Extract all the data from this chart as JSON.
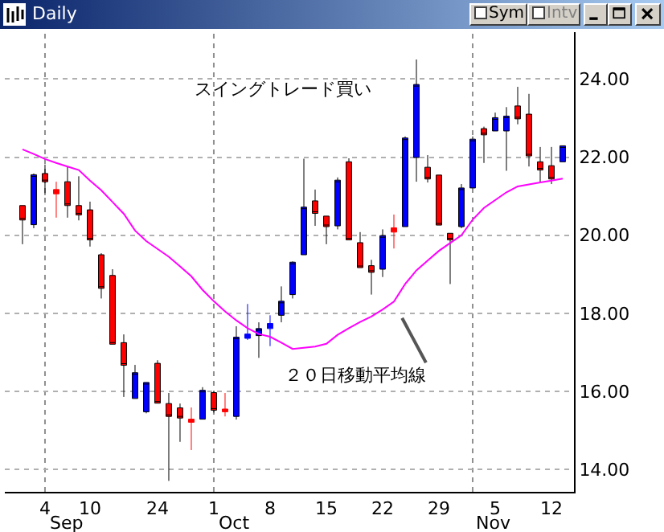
{
  "chart_data": {
    "type": "candlestick",
    "title": "Daily",
    "categories": [
      null,
      null,
      "4",
      null,
      null,
      null,
      "10",
      null,
      null,
      null,
      null,
      null,
      "24",
      null,
      null,
      null,
      null,
      "1",
      null,
      null,
      null,
      null,
      "8",
      null,
      null,
      null,
      null,
      "15",
      null,
      null,
      null,
      null,
      "22",
      null,
      null,
      null,
      null,
      "29",
      null,
      null,
      null,
      null,
      "5",
      null,
      null,
      null,
      null,
      "12",
      null
    ],
    "ohlc": [
      [
        20.76,
        20.76,
        19.77,
        20.39
      ],
      [
        20.27,
        21.58,
        20.18,
        21.55
      ],
      [
        21.58,
        21.81,
        21.03,
        21.37
      ],
      [
        21.17,
        21.37,
        20.45,
        21.06
      ],
      [
        21.37,
        21.76,
        20.45,
        20.76
      ],
      [
        20.76,
        21.51,
        20.38,
        20.52
      ],
      [
        20.65,
        20.86,
        19.71,
        19.88
      ],
      [
        19.5,
        19.54,
        18.38,
        18.64
      ],
      [
        18.97,
        19.13,
        17.21,
        17.21
      ],
      [
        17.25,
        17.46,
        15.86,
        16.67
      ],
      [
        15.82,
        16.68,
        15.82,
        16.48
      ],
      [
        15.48,
        16.23,
        15.44,
        16.23
      ],
      [
        16.72,
        16.8,
        15.7,
        15.7
      ],
      [
        15.69,
        15.96,
        13.71,
        15.36
      ],
      [
        15.58,
        15.69,
        14.71,
        15.32
      ],
      [
        15.29,
        15.59,
        14.5,
        15.21
      ],
      [
        15.29,
        16.11,
        15.29,
        16.03
      ],
      [
        15.97,
        16.0,
        15.46,
        15.52
      ],
      [
        15.55,
        15.96,
        15.36,
        15.48
      ],
      [
        15.36,
        17.67,
        15.28,
        17.39
      ],
      [
        17.36,
        18.24,
        17.32,
        17.47
      ],
      [
        17.43,
        17.77,
        16.86,
        17.61
      ],
      [
        17.61,
        17.95,
        17.16,
        17.74
      ],
      [
        17.95,
        18.69,
        17.77,
        18.31
      ],
      [
        18.48,
        19.33,
        18.38,
        19.31
      ],
      [
        19.5,
        21.96,
        19.5,
        20.72
      ],
      [
        20.88,
        21.17,
        20.24,
        20.56
      ],
      [
        20.49,
        20.49,
        19.77,
        20.22
      ],
      [
        20.24,
        21.48,
        20.15,
        21.41
      ],
      [
        21.88,
        21.97,
        19.88,
        19.88
      ],
      [
        19.81,
        20.08,
        19.17,
        19.17
      ],
      [
        19.22,
        19.37,
        18.48,
        19.05
      ],
      [
        19.13,
        20.15,
        18.93,
        19.99
      ],
      [
        20.19,
        20.53,
        19.66,
        20.08
      ],
      [
        20.22,
        22.53,
        20.22,
        22.49
      ],
      [
        21.99,
        24.5,
        21.37,
        23.86
      ],
      [
        21.74,
        22.05,
        21.35,
        21.44
      ],
      [
        21.54,
        21.54,
        20.26,
        20.26
      ],
      [
        20.05,
        20.05,
        18.75,
        19.88
      ],
      [
        20.22,
        21.31,
        20.18,
        21.21
      ],
      [
        21.21,
        22.53,
        21.21,
        22.46
      ],
      [
        22.73,
        22.78,
        21.85,
        22.57
      ],
      [
        22.67,
        23.14,
        22.67,
        23.01
      ],
      [
        22.67,
        23.28,
        21.65,
        23.05
      ],
      [
        23.31,
        23.8,
        22.84,
        22.98
      ],
      [
        23.1,
        23.62,
        21.76,
        22.03
      ],
      [
        21.88,
        22.26,
        21.37,
        21.67
      ],
      [
        21.78,
        22.26,
        21.31,
        21.44
      ],
      [
        21.88,
        22.29,
        21.88,
        22.29
      ]
    ],
    "colors": [
      "#ff0000",
      "#0000ff",
      "#ff0000",
      "#ff0000",
      "#ff0000",
      "#ff0000",
      "#ff0000",
      "#ff0000",
      "#ff0000",
      "#ff0000",
      "#0000ff",
      "#0000ff",
      "#ff0000",
      "#ff0000",
      "#ff0000",
      "#ff0000",
      "#0000ff",
      "#ff0000",
      "#ff0000",
      "#0000ff",
      "#0000ff",
      "#0000ff",
      "#0000ff",
      "#0000ff",
      "#0000ff",
      "#0000ff",
      "#ff0000",
      "#ff0000",
      "#0000ff",
      "#ff0000",
      "#ff0000",
      "#ff0000",
      "#0000ff",
      "#ff0000",
      "#0000ff",
      "#0000ff",
      "#ff0000",
      "#ff0000",
      "#ff0000",
      "#0000ff",
      "#0000ff",
      "#ff0000",
      "#0000ff",
      "#0000ff",
      "#ff0000",
      "#ff0000",
      "#ff0000",
      "#ff0000",
      "#0000ff"
    ],
    "series": [
      {
        "type": "line",
        "color": "#ff00ff",
        "values": [
          22.2,
          22.08,
          21.95,
          21.85,
          21.76,
          21.67,
          21.4,
          21.15,
          20.85,
          20.55,
          20.12,
          19.85,
          19.65,
          19.45,
          19.2,
          18.95,
          18.6,
          18.31,
          18.05,
          17.82,
          17.62,
          17.47,
          17.4,
          17.25,
          17.09,
          17.12,
          17.15,
          17.22,
          17.45,
          17.62,
          17.78,
          17.92,
          18.1,
          18.3,
          18.75,
          19.1,
          19.35,
          19.6,
          19.8,
          20.0,
          20.4,
          20.7,
          20.9,
          21.1,
          21.25,
          21.3,
          21.35,
          21.4,
          21.45
        ]
      }
    ],
    "ylim": [
      13.43,
      25.2
    ],
    "yticks": [
      {
        "value": 14,
        "label": "14.00"
      },
      {
        "value": 16,
        "label": "16.00"
      },
      {
        "value": 18,
        "label": "18.00"
      },
      {
        "value": 20,
        "label": "20.00"
      },
      {
        "value": 22,
        "label": "22.00"
      },
      {
        "value": 24,
        "label": "24.00"
      }
    ],
    "grid": "y",
    "annotations": [
      "スイングトレード買い",
      "２０日移動平均線",
      "Sep",
      "Oct",
      "Nov",
      "Sym",
      "Intv"
    ]
  }
}
